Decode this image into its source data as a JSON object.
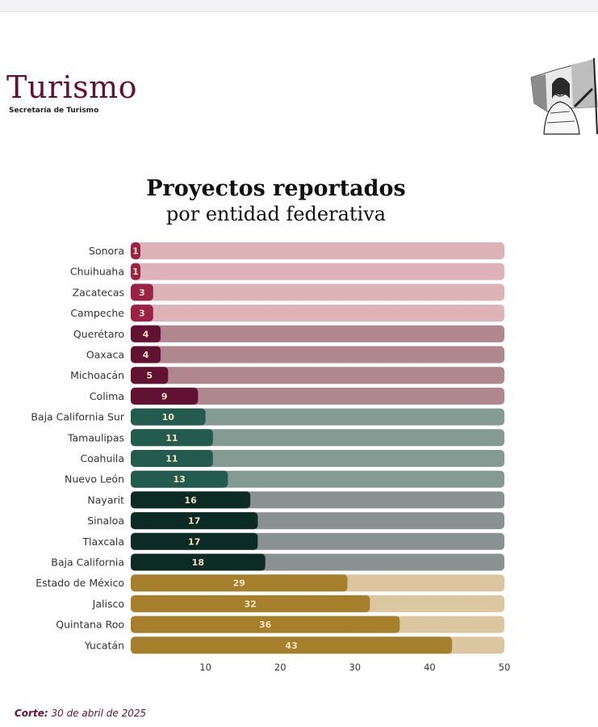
{
  "header": {
    "brand": "Turismo",
    "brand_subtitle": "Secretaría de Turismo",
    "emblem_icon": "woman-with-flag-emblem"
  },
  "chart_data": {
    "type": "bar",
    "orientation": "horizontal",
    "title": "Proyectos reportados",
    "subtitle": "por entidad federativa",
    "categories": [
      "Sonora",
      "Chuihuaha",
      "Zacatecas",
      "Campeche",
      "Querétaro",
      "Oaxaca",
      "Michoacán",
      "Colima",
      "Baja California Sur",
      "Tamaulipas",
      "Coahuila",
      "Nuevo León",
      "Nayarit",
      "Sinaloa",
      "Tlaxcala",
      "Baja California",
      "Estado de México",
      "Jalisco",
      "Quintana Roo",
      "Yucatán"
    ],
    "values": [
      1,
      1,
      3,
      3,
      4,
      4,
      5,
      9,
      10,
      11,
      11,
      13,
      16,
      17,
      17,
      18,
      29,
      32,
      36,
      43
    ],
    "bar_colors": [
      "#9b2247",
      "#9b2247",
      "#9b2247",
      "#9b2247",
      "#611232",
      "#611232",
      "#611232",
      "#611232",
      "#235b4e",
      "#235b4e",
      "#235b4e",
      "#235b4e",
      "#0c2b24",
      "#0c2b24",
      "#0c2b24",
      "#0c2b24",
      "#a57f2c",
      "#a57f2c",
      "#a57f2c",
      "#a57f2c"
    ],
    "track_colors": [
      "#ddb3b8",
      "#ddb3b8",
      "#ddb3b8",
      "#ddb3b8",
      "#b0868f",
      "#b0868f",
      "#b0868f",
      "#b0868f",
      "#849b93",
      "#849b93",
      "#849b93",
      "#849b93",
      "#8a9291",
      "#8a9291",
      "#8a9291",
      "#8a9291",
      "#dcc6a0",
      "#dcc6a0",
      "#dcc6a0",
      "#dcc6a0"
    ],
    "value_label_color": "#f4e3bd",
    "xlim": [
      0,
      50
    ],
    "xticks": [
      10,
      20,
      30,
      40,
      50
    ],
    "grid": false,
    "legend": "none"
  },
  "footer": {
    "label": "Corte:",
    "date": "30 de abril de 2025"
  }
}
